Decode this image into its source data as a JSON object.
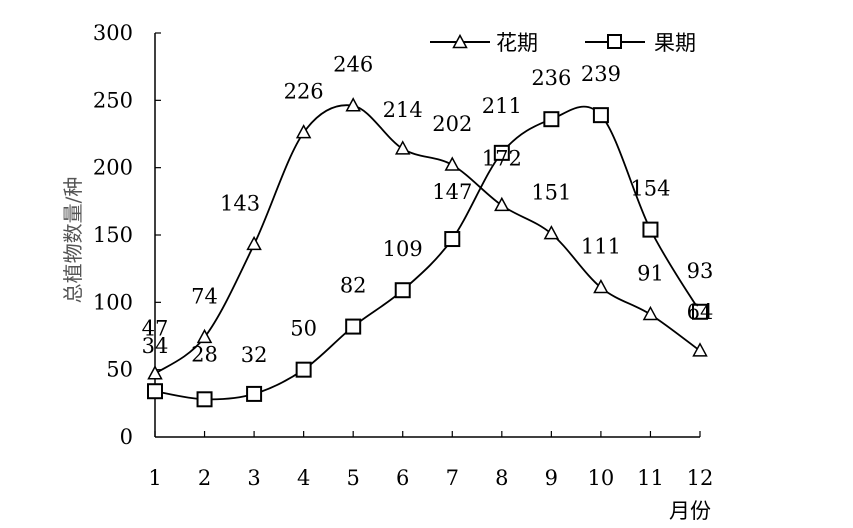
{
  "chart_data": {
    "type": "line",
    "x": [
      1,
      2,
      3,
      4,
      5,
      6,
      7,
      8,
      9,
      10,
      11,
      12
    ],
    "xlabel": "月份",
    "ylabel": "总植物数量/种",
    "ylim": [
      0,
      300
    ],
    "yticks": [
      0,
      50,
      100,
      150,
      200,
      250,
      300
    ],
    "grid": false,
    "legend_position": "top-right",
    "series": [
      {
        "name": "花期",
        "marker": "triangle",
        "values": [
          47,
          74,
          143,
          226,
          246,
          214,
          202,
          172,
          151,
          111,
          91,
          64
        ]
      },
      {
        "name": "果期",
        "marker": "square",
        "values": [
          34,
          28,
          32,
          50,
          82,
          109,
          147,
          211,
          236,
          239,
          154,
          93
        ]
      }
    ],
    "colors": {
      "line": "#000000",
      "axis": "#000000",
      "ylabel": "#555555"
    }
  }
}
